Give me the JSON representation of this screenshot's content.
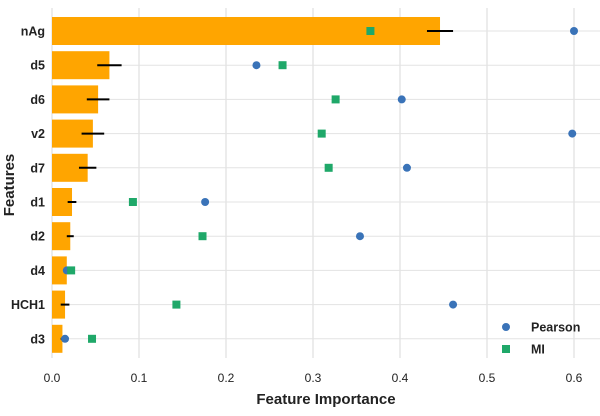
{
  "chart_data": {
    "type": "bar",
    "orientation": "horizontal",
    "xlabel": "Feature Importance",
    "ylabel": "Features",
    "xlim": [
      0.0,
      0.62
    ],
    "xticks": [
      0.0,
      0.1,
      0.2,
      0.3,
      0.4,
      0.5,
      0.6
    ],
    "xtick_labels": [
      "0.0",
      "0.1",
      "0.2",
      "0.3",
      "0.4",
      "0.5",
      "0.6"
    ],
    "grid": true,
    "categories": [
      "nAg",
      "d5",
      "d6",
      "v2",
      "d7",
      "d1",
      "d2",
      "d4",
      "HCH1",
      "d3"
    ],
    "bar_values": [
      0.446,
      0.066,
      0.053,
      0.047,
      0.041,
      0.023,
      0.021,
      0.017,
      0.015,
      0.012
    ],
    "bar_errors": [
      0.015,
      0.014,
      0.013,
      0.013,
      0.01,
      0.005,
      0.004,
      0.003,
      0.005,
      0.002
    ],
    "bar_color": "#FFA500",
    "series": [
      {
        "name": "Pearson",
        "marker": "circle",
        "color": "#3A73B8",
        "values": [
          0.6,
          0.235,
          0.402,
          0.598,
          0.408,
          0.176,
          0.354,
          0.017,
          0.461,
          0.015
        ]
      },
      {
        "name": "MI",
        "marker": "square",
        "color": "#1FA869",
        "values": [
          0.366,
          0.265,
          0.326,
          0.31,
          0.318,
          0.093,
          0.173,
          0.022,
          0.143,
          0.046
        ]
      }
    ],
    "legend_position": "bottom-right"
  }
}
